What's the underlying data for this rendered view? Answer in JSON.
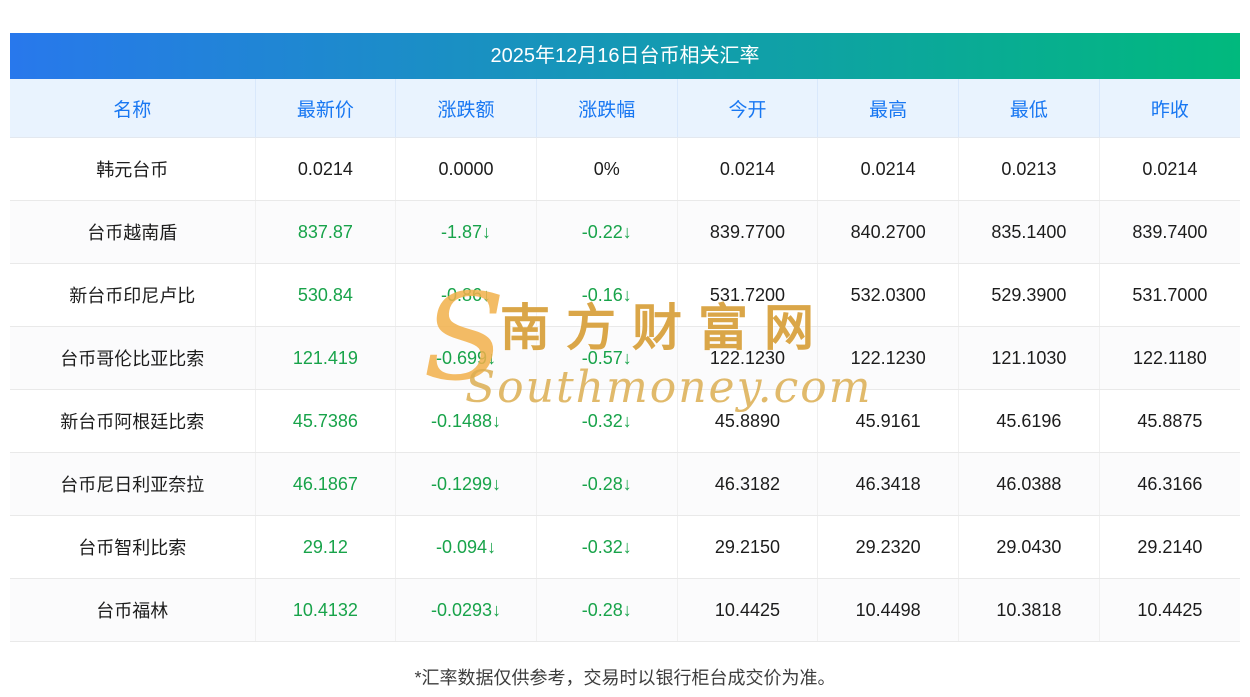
{
  "page": {
    "title": "2025年12月16日台币相关汇率",
    "footer_note": "*汇率数据仅供参考，交易时以银行柜台成交价为准。"
  },
  "watermark": {
    "s_glyph": "S",
    "cn": "南方财富网",
    "en": "Southmoney.com"
  },
  "colors": {
    "title_gradient_left": "#2878ec",
    "title_gradient_right": "#01b97d",
    "header_bg": "#e9f3fe",
    "header_text": "#1877f2",
    "down_green": "#18a34a",
    "watermark_gold": "#d9a23f"
  },
  "chart_data": {
    "type": "table",
    "title": "2025年12月16日台币相关汇率",
    "columns": [
      "名称",
      "最新价",
      "涨跌额",
      "涨跌幅",
      "今开",
      "最高",
      "最低",
      "昨收"
    ],
    "column_keys": [
      "name",
      "latest",
      "change",
      "change_pct",
      "open",
      "high",
      "low",
      "prev_close"
    ],
    "green_keys": [
      "latest",
      "change",
      "change_pct"
    ],
    "rows": [
      {
        "name": "韩元台币",
        "latest": "0.0214",
        "change": "0.0000",
        "change_pct": "0%",
        "open": "0.0214",
        "high": "0.0214",
        "low": "0.0213",
        "prev_close": "0.0214",
        "trend": "flat"
      },
      {
        "name": "台币越南盾",
        "latest": "837.87",
        "change": "-1.87↓",
        "change_pct": "-0.22↓",
        "open": "839.7700",
        "high": "840.2700",
        "low": "835.1400",
        "prev_close": "839.7400",
        "trend": "down"
      },
      {
        "name": "新台币印尼卢比",
        "latest": "530.84",
        "change": "-0.86↓",
        "change_pct": "-0.16↓",
        "open": "531.7200",
        "high": "532.0300",
        "low": "529.3900",
        "prev_close": "531.7000",
        "trend": "down"
      },
      {
        "name": "台币哥伦比亚比索",
        "latest": "121.419",
        "change": "-0.699↓",
        "change_pct": "-0.57↓",
        "open": "122.1230",
        "high": "122.1230",
        "low": "121.1030",
        "prev_close": "122.1180",
        "trend": "down"
      },
      {
        "name": "新台币阿根廷比索",
        "latest": "45.7386",
        "change": "-0.1488↓",
        "change_pct": "-0.32↓",
        "open": "45.8890",
        "high": "45.9161",
        "low": "45.6196",
        "prev_close": "45.8875",
        "trend": "down"
      },
      {
        "name": "台币尼日利亚奈拉",
        "latest": "46.1867",
        "change": "-0.1299↓",
        "change_pct": "-0.28↓",
        "open": "46.3182",
        "high": "46.3418",
        "low": "46.0388",
        "prev_close": "46.3166",
        "trend": "down"
      },
      {
        "name": "台币智利比索",
        "latest": "29.12",
        "change": "-0.094↓",
        "change_pct": "-0.32↓",
        "open": "29.2150",
        "high": "29.2320",
        "low": "29.0430",
        "prev_close": "29.2140",
        "trend": "down"
      },
      {
        "name": "台币福林",
        "latest": "10.4132",
        "change": "-0.0293↓",
        "change_pct": "-0.28↓",
        "open": "10.4425",
        "high": "10.4498",
        "low": "10.3818",
        "prev_close": "10.4425",
        "trend": "down"
      }
    ]
  }
}
